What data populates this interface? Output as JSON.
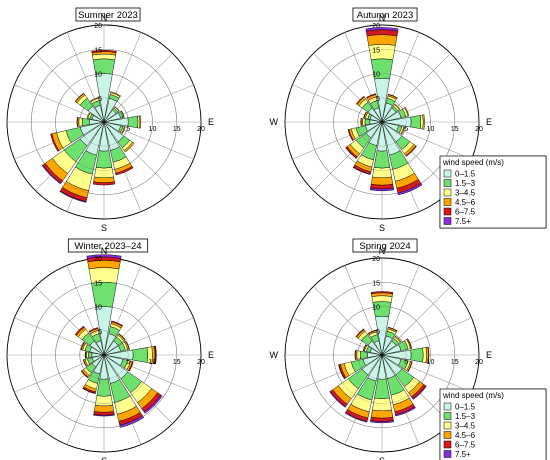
{
  "chart_data": [
    {
      "type": "wind-rose",
      "title": "Summer 2023",
      "directions": [
        "N",
        "NNE",
        "NE",
        "ENE",
        "E",
        "ESE",
        "SE",
        "SSE",
        "S",
        "SSW",
        "SW",
        "WSW",
        "W",
        "WNW",
        "NW",
        "NNW"
      ],
      "bins": [
        "0–1.5",
        "1.5–3",
        "3–4.5",
        "4.5–6",
        "6–7.5",
        "7.5+"
      ],
      "cumulative_percent": [
        [
          10,
          13,
          14,
          14.5,
          14.8,
          14.8
        ],
        [
          5,
          5.8,
          6.2,
          6.4,
          6.4,
          6.4
        ],
        [
          3,
          3.5,
          3.8,
          3.9,
          3.9,
          3.9
        ],
        [
          3.5,
          4,
          4.2,
          4.3,
          4.3,
          4.3
        ],
        [
          5,
          7,
          7.4,
          7.6,
          7.6,
          7.6
        ],
        [
          3.5,
          4,
          4.3,
          4.5,
          4.5,
          4.5
        ],
        [
          5,
          6.5,
          7.2,
          7.6,
          7.6,
          7.6
        ],
        [
          6,
          8.5,
          10,
          10.8,
          11.2,
          11.2
        ],
        [
          6,
          9.5,
          11.5,
          12.5,
          13,
          13
        ],
        [
          7,
          11,
          14.5,
          16,
          16.8,
          17
        ],
        [
          6,
          10,
          13,
          14.8,
          15.4,
          15.6
        ],
        [
          5,
          8,
          10,
          11,
          11.3,
          11.3
        ],
        [
          3,
          4.5,
          5.2,
          5.5,
          5.6,
          5.6
        ],
        [
          2.5,
          3,
          3.4,
          3.6,
          3.6,
          3.6
        ],
        [
          4,
          6,
          6.8,
          7.2,
          7.3,
          7.3
        ],
        [
          3.5,
          4.5,
          5,
          5.2,
          5.2,
          5.2
        ]
      ],
      "rmax": 20,
      "rticks": [
        5,
        10,
        15,
        20
      ],
      "legend_title": "wind speed (m/s)"
    },
    {
      "type": "wind-rose",
      "title": "Autumn 2023",
      "directions": [
        "N",
        "NNE",
        "NE",
        "ENE",
        "E",
        "ESE",
        "SE",
        "SSE",
        "S",
        "SSW",
        "SW",
        "WSW",
        "W",
        "WNW",
        "NW",
        "NNW"
      ],
      "bins": [
        "0–1.5",
        "1.5–3",
        "3–4.5",
        "4.5–6",
        "6–7.5",
        "7.5+"
      ],
      "cumulative_percent": [
        [
          9,
          13,
          16,
          18,
          19,
          19.5
        ],
        [
          4,
          5,
          5.5,
          5.8,
          5.9,
          5.9
        ],
        [
          3.5,
          4,
          4.4,
          4.6,
          4.6,
          4.6
        ],
        [
          4,
          5,
          5.5,
          5.7,
          5.7,
          5.7
        ],
        [
          6,
          8,
          8.5,
          8.8,
          8.8,
          8.8
        ],
        [
          3.5,
          4.2,
          4.6,
          4.8,
          4.8,
          4.8
        ],
        [
          5,
          7,
          8,
          8.5,
          8.7,
          8.7
        ],
        [
          7,
          10,
          12.5,
          14,
          15,
          15.4
        ],
        [
          6,
          9.5,
          11.5,
          13,
          13.8,
          14.2
        ],
        [
          5,
          8,
          9.5,
          10.5,
          11,
          11.1
        ],
        [
          4,
          6.5,
          8,
          8.8,
          9.1,
          9.2
        ],
        [
          3.5,
          5.5,
          6.5,
          7,
          7.2,
          7.2
        ],
        [
          2.5,
          3.5,
          4,
          4.3,
          4.4,
          4.4
        ],
        [
          2.5,
          3,
          3.5,
          3.8,
          3.9,
          3.9
        ],
        [
          3.5,
          5,
          5.8,
          6.3,
          6.5,
          6.5
        ],
        [
          3,
          4.5,
          5.3,
          5.8,
          6,
          6
        ]
      ],
      "rmax": 20,
      "rticks": [
        5,
        10,
        15,
        20
      ],
      "legend_title": "wind speed (m/s)"
    },
    {
      "type": "wind-rose",
      "title": "Winter 2023–24",
      "directions": [
        "N",
        "NNE",
        "NE",
        "ENE",
        "E",
        "ESE",
        "SE",
        "SSE",
        "S",
        "SSW",
        "SW",
        "WSW",
        "W",
        "WNW",
        "NW",
        "NNW"
      ],
      "bins": [
        "0–1.5",
        "1.5–3",
        "3–4.5",
        "4.5–6",
        "6–7.5",
        "7.5+"
      ],
      "cumulative_percent": [
        [
          10,
          15,
          18,
          19.5,
          20.2,
          20.7
        ],
        [
          4.5,
          6,
          6.6,
          7,
          7.2,
          7.2
        ],
        [
          3.5,
          4.5,
          5,
          5.3,
          5.4,
          5.4
        ],
        [
          3.5,
          4.5,
          5,
          5.3,
          5.4,
          5.4
        ],
        [
          6,
          9,
          10,
          10.5,
          10.7,
          10.8
        ],
        [
          4,
          5,
          5.6,
          6,
          6.2,
          6.2
        ],
        [
          6,
          9.5,
          12,
          13.5,
          14.3,
          14.7
        ],
        [
          6,
          10,
          12.5,
          14,
          14.8,
          15.3
        ],
        [
          5,
          8.5,
          10.5,
          11.8,
          12.4,
          12.6
        ],
        [
          4,
          6,
          7.2,
          7.8,
          8.1,
          8.2
        ],
        [
          3,
          4.5,
          5.2,
          5.6,
          5.8,
          5.8
        ],
        [
          2.5,
          3.5,
          4,
          4.3,
          4.4,
          4.4
        ],
        [
          2.5,
          3.2,
          3.6,
          3.8,
          3.9,
          3.9
        ],
        [
          3,
          4,
          4.5,
          4.8,
          4.9,
          4.9
        ],
        [
          3.5,
          5.5,
          6.5,
          7,
          7.3,
          7.3
        ],
        [
          3,
          4.5,
          5.2,
          5.6,
          5.8,
          5.8
        ]
      ],
      "rmax": 20,
      "rticks": [
        5,
        10,
        15,
        20
      ],
      "legend_title": "wind speed (m/s)"
    },
    {
      "type": "wind-rose",
      "title": "Spring 2024",
      "directions": [
        "N",
        "NNE",
        "NE",
        "ENE",
        "E",
        "ESE",
        "SE",
        "SSE",
        "S",
        "SSW",
        "SW",
        "WSW",
        "W",
        "WNW",
        "NW",
        "NNW"
      ],
      "bins": [
        "0–1.5",
        "1.5–3",
        "3–4.5",
        "4.5–6",
        "6–7.5",
        "7.5+"
      ],
      "cumulative_percent": [
        [
          8,
          11,
          12.2,
          12.8,
          13.1,
          13.1
        ],
        [
          4,
          5,
          5.5,
          5.8,
          5.9,
          5.9
        ],
        [
          3.5,
          4.2,
          4.6,
          4.8,
          4.8,
          4.8
        ],
        [
          4,
          5.5,
          6,
          6.2,
          6.3,
          6.3
        ],
        [
          6,
          8.5,
          9.2,
          9.6,
          9.7,
          9.7
        ],
        [
          4,
          5.5,
          6,
          6.3,
          6.4,
          6.4
        ],
        [
          5,
          8,
          9.5,
          10.5,
          11,
          11.2
        ],
        [
          5,
          8.5,
          10.5,
          12,
          12.6,
          12.9
        ],
        [
          5,
          9,
          11.5,
          13,
          13.7,
          14
        ],
        [
          5.5,
          9.5,
          12,
          13.3,
          14,
          14.2
        ],
        [
          5,
          8.5,
          11,
          12.4,
          13,
          13.2
        ],
        [
          4,
          6.5,
          8,
          8.8,
          9.1,
          9.2
        ],
        [
          3,
          4.5,
          5.2,
          5.5,
          5.6,
          5.6
        ],
        [
          2.5,
          3.3,
          3.7,
          3.9,
          4,
          4
        ],
        [
          3.5,
          5.2,
          6,
          6.4,
          6.6,
          6.6
        ],
        [
          3,
          4.3,
          4.9,
          5.2,
          5.3,
          5.3
        ]
      ],
      "rmax": 20,
      "rticks": [
        5,
        10,
        15,
        20
      ],
      "legend_title": "wind speed (m/s)"
    }
  ],
  "cardinals": [
    "N",
    "E",
    "S",
    "W"
  ],
  "bin_colors": [
    "#c8f5e8",
    "#6ee06e",
    "#ffff8c",
    "#ffa500",
    "#d7191c",
    "#8a2be2"
  ],
  "grid_color": "#9a9a9a"
}
